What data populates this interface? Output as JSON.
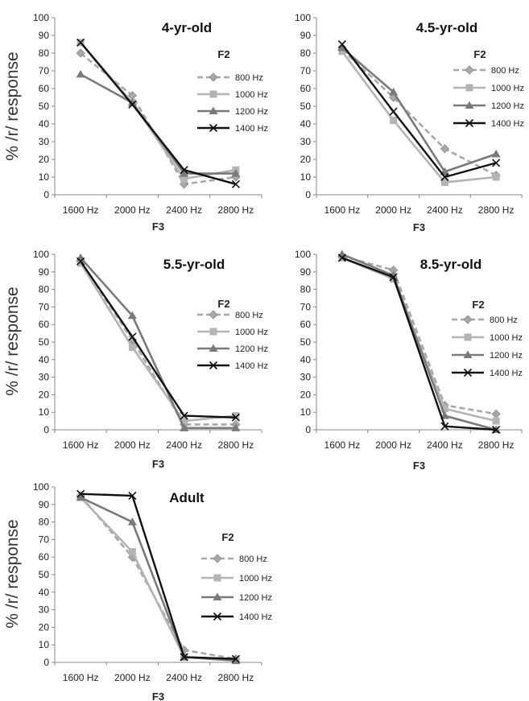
{
  "chart_data": [
    {
      "type": "line",
      "title": "4-yr-old",
      "xlabel": "F3",
      "ylabel": "% /r/ response",
      "categories": [
        "1600 Hz",
        "2000 Hz",
        "2400 Hz",
        "2800 Hz"
      ],
      "ylim": [
        0,
        100
      ],
      "yticks": [
        "0",
        "10",
        "20",
        "30",
        "40",
        "50",
        "60",
        "70",
        "80",
        "90",
        "100"
      ],
      "legend_title": "F2",
      "series": [
        {
          "name": "800 Hz",
          "values": [
            80,
            56,
            6,
            10
          ],
          "color": "#a8a8a8",
          "dashed": true,
          "marker": "diamond"
        },
        {
          "name": "1000 Hz",
          "values": [
            86,
            52,
            9,
            14
          ],
          "color": "#b4b4b4",
          "dashed": false,
          "marker": "square"
        },
        {
          "name": "1200 Hz",
          "values": [
            68,
            52,
            12,
            12
          ],
          "color": "#7a7a7a",
          "dashed": false,
          "marker": "triangle"
        },
        {
          "name": "1400 Hz",
          "values": [
            86,
            51,
            14,
            6
          ],
          "color": "#111111",
          "dashed": false,
          "marker": "x"
        }
      ]
    },
    {
      "type": "line",
      "title": "4.5-yr-old",
      "xlabel": "F3",
      "ylabel": "",
      "categories": [
        "1600 Hz",
        "2000 Hz",
        "2400 Hz",
        "2800 Hz"
      ],
      "ylim": [
        0,
        100
      ],
      "yticks": [
        "0",
        "10",
        "20",
        "30",
        "40",
        "50",
        "60",
        "70",
        "80",
        "90",
        "100"
      ],
      "legend_title": "F2",
      "series": [
        {
          "name": "800 Hz",
          "values": [
            82,
            55,
            26,
            11
          ],
          "color": "#a8a8a8",
          "dashed": true,
          "marker": "diamond"
        },
        {
          "name": "1000 Hz",
          "values": [
            81,
            42,
            7,
            10
          ],
          "color": "#b4b4b4",
          "dashed": false,
          "marker": "square"
        },
        {
          "name": "1200 Hz",
          "values": [
            83,
            58,
            13,
            23
          ],
          "color": "#7a7a7a",
          "dashed": false,
          "marker": "triangle"
        },
        {
          "name": "1400 Hz",
          "values": [
            85,
            47,
            10,
            18
          ],
          "color": "#111111",
          "dashed": false,
          "marker": "x"
        }
      ]
    },
    {
      "type": "line",
      "title": "5.5-yr-old",
      "xlabel": "F3",
      "ylabel": "% /r/ response",
      "categories": [
        "1600 Hz",
        "2000 Hz",
        "2400 Hz",
        "2800 Hz"
      ],
      "ylim": [
        0,
        100
      ],
      "yticks": [
        "0",
        "10",
        "20",
        "30",
        "40",
        "50",
        "60",
        "70",
        "80",
        "90",
        "100"
      ],
      "legend_title": "F2",
      "series": [
        {
          "name": "800 Hz",
          "values": [
            96,
            51,
            3,
            3
          ],
          "color": "#a8a8a8",
          "dashed": true,
          "marker": "diamond"
        },
        {
          "name": "1000 Hz",
          "values": [
            95,
            47,
            5,
            8
          ],
          "color": "#b4b4b4",
          "dashed": false,
          "marker": "square"
        },
        {
          "name": "1200 Hz",
          "values": [
            98,
            65,
            1,
            1
          ],
          "color": "#7a7a7a",
          "dashed": false,
          "marker": "triangle"
        },
        {
          "name": "1400 Hz",
          "values": [
            96,
            53,
            8,
            7
          ],
          "color": "#111111",
          "dashed": false,
          "marker": "x"
        }
      ]
    },
    {
      "type": "line",
      "title": "8.5-yr-old",
      "xlabel": "F3",
      "ylabel": "",
      "categories": [
        "1600 Hz",
        "2000 Hz",
        "2400 Hz",
        "2800 Hz"
      ],
      "ylim": [
        0,
        100
      ],
      "yticks": [
        "0",
        "10",
        "20",
        "30",
        "40",
        "50",
        "60",
        "70",
        "80",
        "90",
        "100"
      ],
      "legend_title": "F2",
      "series": [
        {
          "name": "800 Hz",
          "values": [
            99,
            91,
            14,
            9
          ],
          "color": "#a8a8a8",
          "dashed": true,
          "marker": "diamond"
        },
        {
          "name": "1000 Hz",
          "values": [
            98,
            86,
            12,
            5
          ],
          "color": "#b4b4b4",
          "dashed": false,
          "marker": "square"
        },
        {
          "name": "1200 Hz",
          "values": [
            100,
            88,
            8,
            0
          ],
          "color": "#7a7a7a",
          "dashed": false,
          "marker": "triangle"
        },
        {
          "name": "1400 Hz",
          "values": [
            98,
            87,
            2,
            0
          ],
          "color": "#111111",
          "dashed": false,
          "marker": "x"
        }
      ]
    },
    {
      "type": "line",
      "title": "Adult",
      "xlabel": "F3",
      "ylabel": "% /r/ response",
      "categories": [
        "1600 Hz",
        "2000 Hz",
        "2400 Hz",
        "2800 Hz"
      ],
      "ylim": [
        0,
        100
      ],
      "yticks": [
        "0",
        "10",
        "20",
        "30",
        "40",
        "50",
        "60",
        "70",
        "80",
        "90",
        "100"
      ],
      "legend_title": "F2",
      "series": [
        {
          "name": "800 Hz",
          "values": [
            95,
            60,
            7,
            2
          ],
          "color": "#a8a8a8",
          "dashed": true,
          "marker": "diamond"
        },
        {
          "name": "1000 Hz",
          "values": [
            94,
            63,
            3,
            1
          ],
          "color": "#b4b4b4",
          "dashed": false,
          "marker": "square"
        },
        {
          "name": "1200 Hz",
          "values": [
            94,
            80,
            3,
            1
          ],
          "color": "#7a7a7a",
          "dashed": false,
          "marker": "triangle"
        },
        {
          "name": "1400 Hz",
          "values": [
            96,
            95,
            3,
            2
          ],
          "color": "#111111",
          "dashed": false,
          "marker": "x"
        }
      ]
    }
  ]
}
